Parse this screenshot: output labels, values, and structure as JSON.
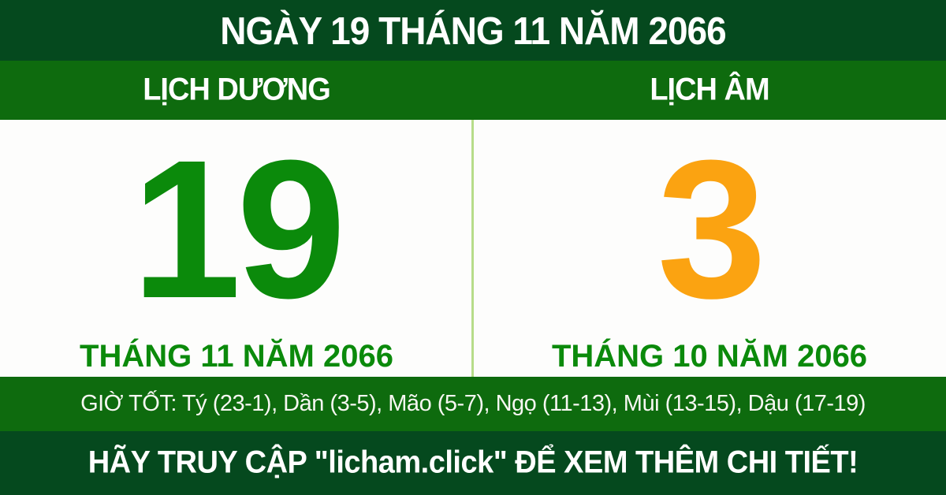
{
  "header": {
    "title": "NGÀY 19 THÁNG 11 NĂM 2066"
  },
  "calendar": {
    "solar": {
      "label": "LỊCH DƯƠNG",
      "day": "19",
      "month_year": "THÁNG 11 NĂM 2066"
    },
    "lunar": {
      "label": "LỊCH ÂM",
      "day": "3",
      "month_year": "THÁNG 10 NĂM 2066"
    }
  },
  "good_hours": {
    "text": "GIỜ TỐT: Tý (23-1), Dần (3-5), Mão (5-7), Ngọ (11-13), Mùi (13-15), Dậu (17-19)"
  },
  "footer": {
    "text": "HÃY TRUY CẬP \"licham.click\" ĐỂ XEM THÊM CHI TIẾT!"
  },
  "colors": {
    "dark_green": "#05491e",
    "green": "#0e6b0e",
    "digit_green": "#0b8a0b",
    "orange": "#fba311",
    "divider": "#b7dd8a"
  }
}
